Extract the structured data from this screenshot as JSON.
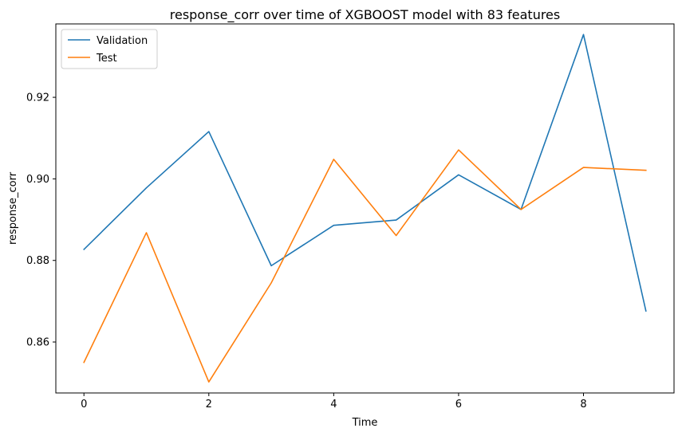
{
  "chart_data": {
    "type": "line",
    "title": "response_corr over time of XGBOOST model with 83 features",
    "xlabel": "Time",
    "ylabel": "response_corr",
    "x": [
      0,
      1,
      2,
      3,
      4,
      5,
      6,
      7,
      8,
      9
    ],
    "xlim": [
      -0.45,
      9.45
    ],
    "ylim": [
      0.8475,
      0.938
    ],
    "xticks": [
      0,
      2,
      4,
      6,
      8
    ],
    "yticks": [
      0.86,
      0.88,
      0.9,
      0.92
    ],
    "ytick_labels": [
      "0.86",
      "0.88",
      "0.90",
      "0.92"
    ],
    "xtick_labels": [
      "0",
      "2",
      "4",
      "6",
      "8"
    ],
    "grid": false,
    "legend": "top-left",
    "series": [
      {
        "name": "Validation",
        "color": "#1f77b4",
        "values": [
          0.8827,
          0.8978,
          0.9116,
          0.8787,
          0.8886,
          0.8899,
          0.901,
          0.8925,
          0.9354,
          0.8676
        ]
      },
      {
        "name": "Test",
        "color": "#ff7f0e",
        "values": [
          0.855,
          0.8868,
          0.8502,
          0.8745,
          0.9048,
          0.8861,
          0.9071,
          0.8925,
          0.9028,
          0.9021
        ]
      }
    ]
  }
}
